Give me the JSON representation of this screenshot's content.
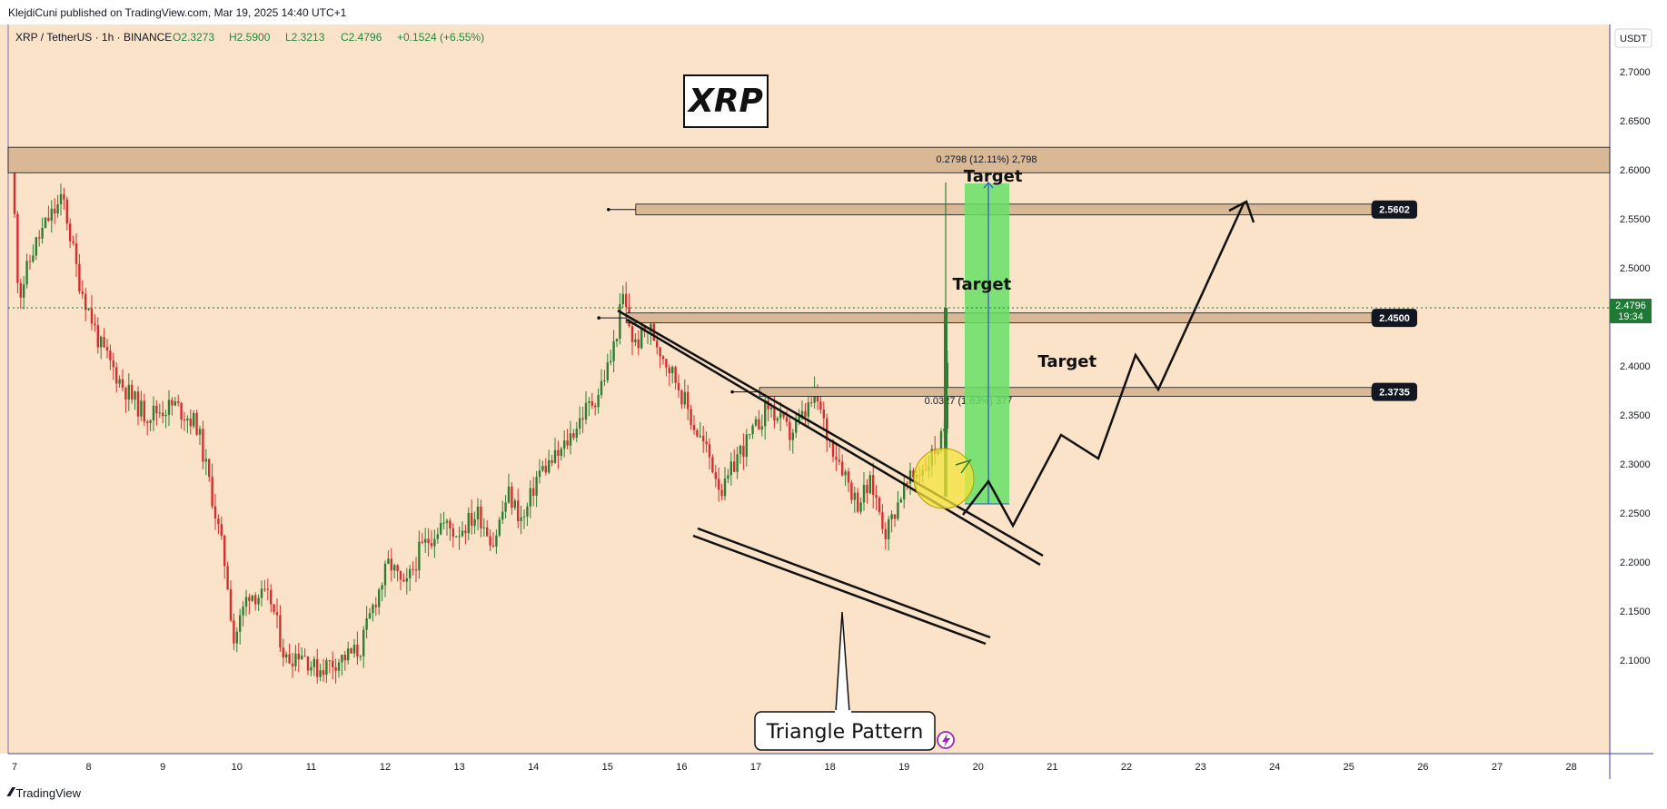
{
  "header": {
    "publisher": "KlejdiCuni published on TradingView.com, Mar 19, 2025 14:40 UTC+1"
  },
  "symbol_info": {
    "pair": "XRP / TetherUS · 1h · BINANCE",
    "open": "O2.3273",
    "high": "H2.5900",
    "low": "L2.3213",
    "close": "C2.4796",
    "change": "+0.1524 (+6.55%)"
  },
  "currency_label": "USDT",
  "footer": {
    "brand": "TradingView",
    "logo": "TV-logo-icon"
  },
  "colors": {
    "background": "#fbe3c9",
    "up_candle": "#2e7d32",
    "down_candle": "#d32f2f",
    "zone_fill": "#d9b896",
    "target_fill": "#66e066",
    "price_tag": "#1e7a34",
    "symbol_text": "#1e8a3a"
  },
  "chart_data": {
    "type": "candlestick",
    "title": "XRP",
    "xlabel": "",
    "ylabel": "",
    "x_ticks": [
      "7",
      "8",
      "9",
      "10",
      "11",
      "12",
      "13",
      "14",
      "15",
      "16",
      "17",
      "18",
      "19",
      "20",
      "21",
      "22",
      "23",
      "24",
      "25",
      "26",
      "27",
      "28"
    ],
    "y_ticks": [
      "2.7000",
      "2.6500",
      "2.6000",
      "2.5500",
      "2.5000",
      "2.4500",
      "2.4000",
      "2.3500",
      "2.3000",
      "2.2500",
      "2.2000",
      "2.1500",
      "2.1000"
    ],
    "ylim": [
      2.09,
      2.71
    ],
    "current_price": {
      "label": "2.4796",
      "countdown": "19:34",
      "value": 2.4796
    },
    "price_path": [
      [
        7.0,
        2.61
      ],
      [
        7.1,
        2.47
      ],
      [
        7.3,
        2.52
      ],
      [
        7.5,
        2.55
      ],
      [
        7.7,
        2.57
      ],
      [
        7.9,
        2.49
      ],
      [
        8.2,
        2.42
      ],
      [
        8.5,
        2.38
      ],
      [
        8.8,
        2.35
      ],
      [
        9.2,
        2.36
      ],
      [
        9.5,
        2.34
      ],
      [
        9.7,
        2.27
      ],
      [
        9.9,
        2.19
      ],
      [
        10.0,
        2.12
      ],
      [
        10.2,
        2.17
      ],
      [
        10.5,
        2.16
      ],
      [
        10.7,
        2.1
      ],
      [
        10.9,
        2.11
      ],
      [
        11.1,
        2.09
      ],
      [
        11.4,
        2.1
      ],
      [
        11.7,
        2.11
      ],
      [
        11.9,
        2.16
      ],
      [
        12.1,
        2.2
      ],
      [
        12.3,
        2.17
      ],
      [
        12.5,
        2.21
      ],
      [
        12.8,
        2.24
      ],
      [
        13.0,
        2.23
      ],
      [
        13.3,
        2.25
      ],
      [
        13.5,
        2.22
      ],
      [
        13.7,
        2.27
      ],
      [
        13.9,
        2.24
      ],
      [
        14.1,
        2.29
      ],
      [
        14.4,
        2.31
      ],
      [
        14.7,
        2.35
      ],
      [
        14.9,
        2.37
      ],
      [
        15.1,
        2.41
      ],
      [
        15.25,
        2.47
      ],
      [
        15.4,
        2.42
      ],
      [
        15.6,
        2.44
      ],
      [
        15.8,
        2.41
      ],
      [
        16.0,
        2.38
      ],
      [
        16.2,
        2.34
      ],
      [
        16.4,
        2.31
      ],
      [
        16.6,
        2.27
      ],
      [
        16.8,
        2.31
      ],
      [
        17.0,
        2.33
      ],
      [
        17.2,
        2.36
      ],
      [
        17.5,
        2.33
      ],
      [
        17.7,
        2.35
      ],
      [
        17.85,
        2.37
      ],
      [
        18.0,
        2.33
      ],
      [
        18.2,
        2.3
      ],
      [
        18.4,
        2.26
      ],
      [
        18.6,
        2.28
      ],
      [
        18.8,
        2.23
      ],
      [
        19.0,
        2.27
      ],
      [
        19.2,
        2.29
      ],
      [
        19.35,
        2.3
      ],
      [
        19.5,
        2.32
      ],
      [
        19.6,
        2.33
      ],
      [
        19.65,
        2.48
      ]
    ],
    "zones": [
      {
        "low": 2.597,
        "high": 2.623,
        "label": "0.2798 (12.11%) 2,798"
      },
      {
        "low": 2.554,
        "high": 2.565,
        "x_start": 15.38,
        "price_label": "2.5602"
      },
      {
        "low": 2.444,
        "high": 2.454,
        "x_start": 15.25,
        "price_label": "2.4500"
      },
      {
        "low": 2.369,
        "high": 2.378,
        "x_start": 17.05,
        "price_label": "2.3735",
        "measure": "0.0327 (1.63%) 377"
      }
    ],
    "annotations": [
      {
        "text": "Target",
        "x": 20.2,
        "y": 2.588
      },
      {
        "text": "Target",
        "x": 20.05,
        "y": 2.478
      },
      {
        "text": "Target",
        "x": 21.2,
        "y": 2.399
      }
    ],
    "pattern_label": "Triangle Pattern"
  }
}
